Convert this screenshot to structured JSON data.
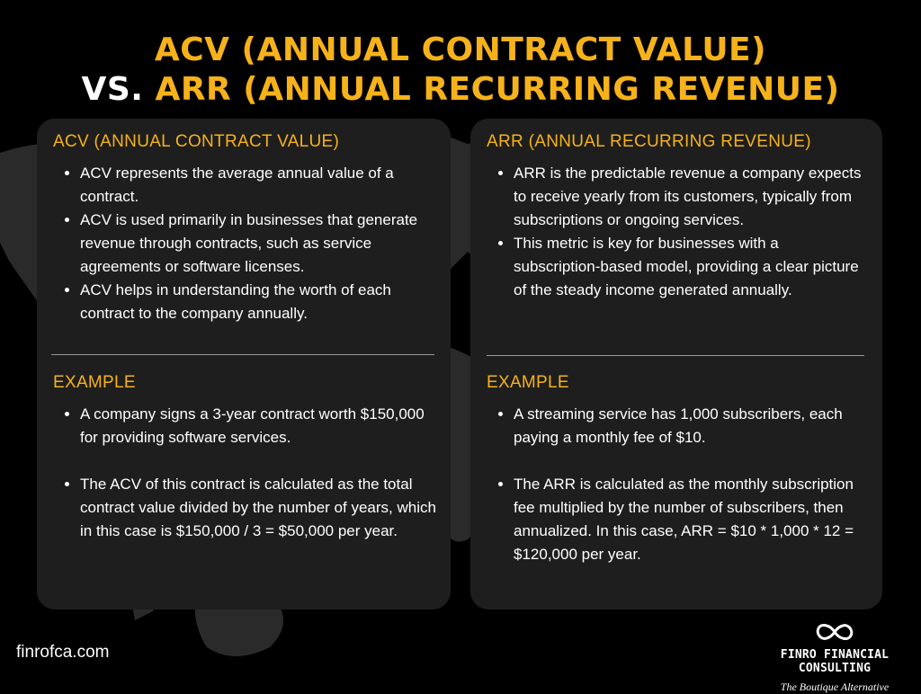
{
  "title": {
    "line1": "ACV (ANNUAL CONTRACT VALUE)",
    "line2_prefix": "VS. ",
    "line2_accent": "ARR (ANNUAL RECURRING REVENUE)"
  },
  "left_card": {
    "heading": "ACV (ANNUAL CONTRACT VALUE)",
    "bullets": [
      "ACV represents the average annual value of a contract.",
      "ACV is used primarily in businesses that generate revenue through contracts, such as service agreements or software licenses.",
      "ACV helps in understanding the worth of each contract to the company annually."
    ],
    "example_heading": "EXAMPLE",
    "example_bullets": [
      "A company signs a 3-year contract worth $150,000 for providing software services.",
      "The ACV of this contract is calculated as the total contract value divided by the number of years, which in this case is $150,000 / 3 = $50,000 per year."
    ]
  },
  "right_card": {
    "heading": "ARR (ANNUAL RECURRING REVENUE)",
    "bullets": [
      "ARR is the predictable revenue a company expects to receive yearly from its customers, typically from subscriptions or ongoing services.",
      "This metric is key for businesses with a subscription-based model, providing a clear picture of the steady income generated annually."
    ],
    "example_heading": "EXAMPLE",
    "example_bullets": [
      "A streaming service has 1,000 subscribers, each paying a monthly fee of $10.",
      "The ARR is calculated as the monthly subscription fee multiplied by the number of subscribers, then annualized. In this case, ARR = $10 * 1,000 * 12 = $120,000 per year."
    ]
  },
  "footer": {
    "website": "finrofca.com",
    "brand": "FINRO FINANCIAL CONSULTING",
    "tagline": "The Boutique Alternative",
    "logo_icon": "infinity-icon"
  },
  "colors": {
    "accent": "#f6b21a",
    "background": "#000000",
    "card": "#1e1e1e",
    "text": "#ffffff"
  }
}
